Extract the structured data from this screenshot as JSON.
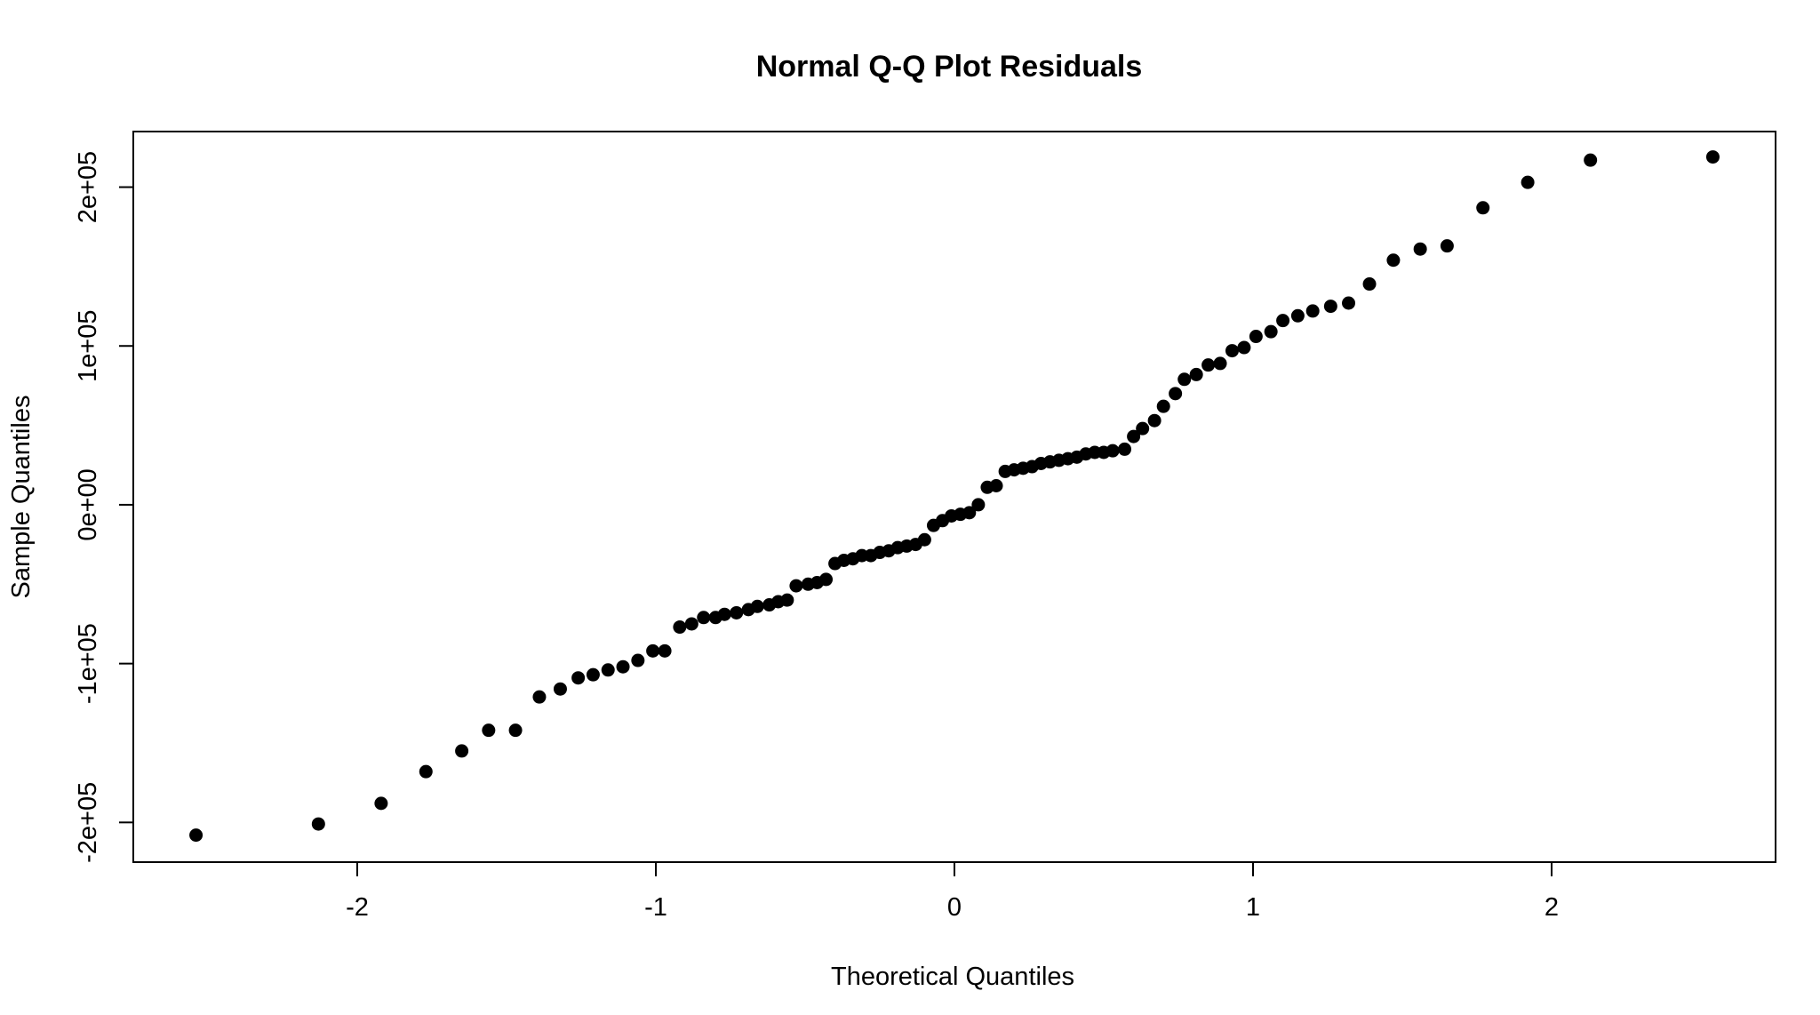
{
  "chart_data": {
    "type": "scatter",
    "title": "Normal Q-Q Plot Residuals",
    "xlabel": "Theoretical Quantiles",
    "ylabel": "Sample Quantiles",
    "xlim": [
      -2.75,
      2.75
    ],
    "ylim": [
      -225000,
      235000
    ],
    "x_ticks": [
      -2,
      -1,
      0,
      1,
      2
    ],
    "x_tick_labels": [
      "-2",
      "-1",
      "0",
      "1",
      "2"
    ],
    "y_ticks": [
      -200000,
      -100000,
      0,
      100000,
      200000
    ],
    "y_tick_labels": [
      "-2e+05",
      "-1e+05",
      "0e+00",
      "1e+05",
      "2e+05"
    ],
    "grid": false,
    "legend": "none",
    "point_color": "#000000",
    "series": [
      {
        "x": [
          -2.54,
          -2.13,
          -1.92,
          -1.77,
          -1.65,
          -1.56,
          -1.47,
          -1.39,
          -1.32,
          -1.26,
          -1.21,
          -1.16,
          -1.11,
          -1.06,
          -1.01,
          -0.97,
          -0.92,
          -0.88,
          -0.84,
          -0.8,
          -0.77,
          -0.73,
          -0.69,
          -0.66,
          -0.62,
          -0.59,
          -0.56,
          -0.53,
          -0.49,
          -0.46,
          -0.43,
          -0.4,
          -0.37,
          -0.34,
          -0.31,
          -0.28,
          -0.25,
          -0.22,
          -0.19,
          -0.16,
          -0.13,
          -0.1,
          -0.07,
          -0.04,
          -0.01,
          0.02,
          0.05,
          0.08,
          0.11,
          0.14,
          0.17,
          0.2,
          0.23,
          0.26,
          0.29,
          0.32,
          0.35,
          0.38,
          0.41,
          0.44,
          0.47,
          0.5,
          0.53,
          0.57,
          0.6,
          0.63,
          0.67,
          0.7,
          0.74,
          0.77,
          0.81,
          0.85,
          0.89,
          0.93,
          0.97,
          1.01,
          1.06,
          1.1,
          1.15,
          1.2,
          1.26,
          1.32,
          1.39,
          1.47,
          1.56,
          1.65,
          1.77,
          1.92,
          2.13,
          2.54
        ],
        "y": [
          -208000,
          -201000,
          -188000,
          -168000,
          -155000,
          -142000,
          -142000,
          -121000,
          -116000,
          -109000,
          -107000,
          -104000,
          -102000,
          -98000,
          -92000,
          -92000,
          -77000,
          -75000,
          -71000,
          -71000,
          -69000,
          -68000,
          -66000,
          -64000,
          -63000,
          -61000,
          -60000,
          -51000,
          -50000,
          -49000,
          -47000,
          -37000,
          -35000,
          -34000,
          -32000,
          -32000,
          -30000,
          -29000,
          -27000,
          -26000,
          -25000,
          -22000,
          -13000,
          -10000,
          -7000,
          -6000,
          -5000,
          0,
          11000,
          12000,
          21000,
          22000,
          23000,
          24000,
          26000,
          27000,
          28000,
          29000,
          30000,
          32000,
          33000,
          33000,
          34000,
          35000,
          43000,
          48000,
          53000,
          62000,
          70000,
          79000,
          82000,
          88000,
          89000,
          97000,
          99000,
          106000,
          109000,
          116000,
          119000,
          122000,
          125000,
          127000,
          139000,
          154000,
          161000,
          163000,
          187000,
          203000,
          217000,
          219000
        ]
      }
    ]
  }
}
